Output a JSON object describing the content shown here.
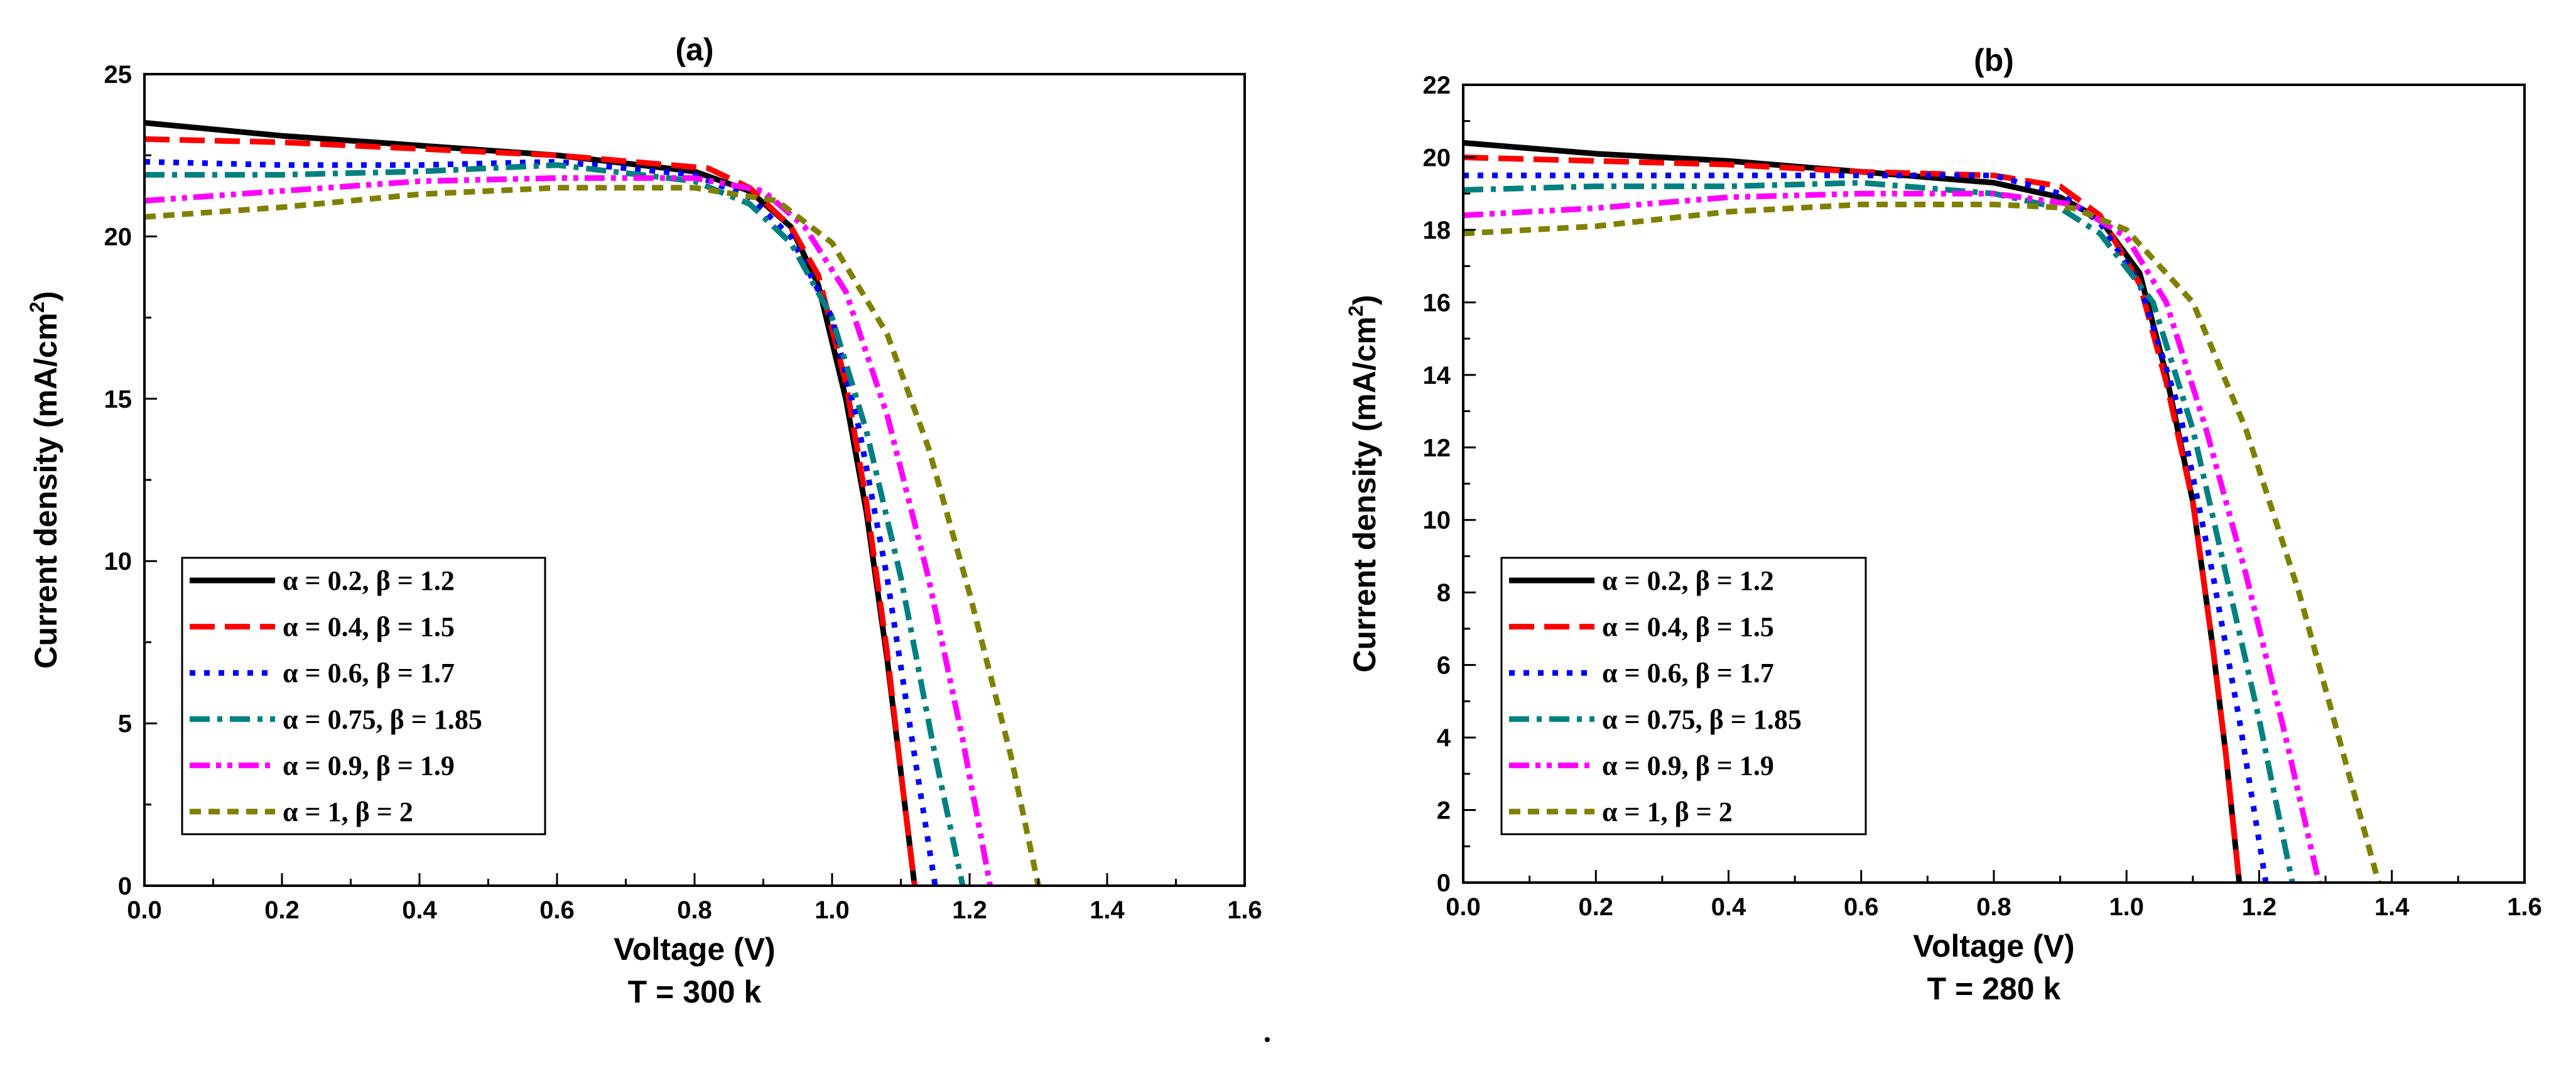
{
  "chart_data": [
    {
      "type": "line",
      "title": "(a)",
      "xlabel": "Voltage (V)",
      "ylabel": "Current density (mA/cm2)",
      "caption": "T = 300 k",
      "xlim": [
        0,
        1.6
      ],
      "ylim": [
        0,
        25
      ],
      "xticks": [
        0.0,
        0.2,
        0.4,
        0.6,
        0.8,
        1.0,
        1.2,
        1.4,
        1.6
      ],
      "xtick_labels": [
        "0.0",
        "0.2",
        "0.4",
        "0.6",
        "0.8",
        "1.0",
        "1.2",
        "1.4",
        "1.6"
      ],
      "yticks": [
        0,
        5,
        10,
        15,
        20,
        25
      ],
      "ytick_labels": [
        "0",
        "5",
        "10",
        "15",
        "20",
        "25"
      ],
      "legend_position": "lower-left",
      "series": [
        {
          "name": "α = 0.2, β = 1.2",
          "color": "#000000",
          "style": "solid",
          "x": [
            0,
            0.2,
            0.4,
            0.6,
            0.8,
            0.88,
            0.94,
            0.98,
            1.02,
            1.05,
            1.08,
            1.1,
            1.12
          ],
          "y": [
            23.5,
            23.1,
            22.8,
            22.5,
            22.0,
            21.4,
            20.3,
            18.5,
            15.0,
            11.5,
            7.0,
            3.5,
            0
          ]
        },
        {
          "name": "α = 0.4, β = 1.5",
          "color": "#ff0000",
          "style": "dash",
          "x": [
            0,
            0.2,
            0.4,
            0.6,
            0.82,
            0.88,
            0.94,
            0.98,
            1.02,
            1.05,
            1.08,
            1.1,
            1.12
          ],
          "y": [
            23.0,
            22.9,
            22.7,
            22.5,
            22.1,
            21.5,
            20.3,
            18.8,
            15.5,
            11.8,
            7.2,
            3.5,
            0
          ]
        },
        {
          "name": "α = 0.6, β = 1.7",
          "color": "#0000ff",
          "style": "dot",
          "x": [
            0,
            0.2,
            0.4,
            0.6,
            0.8,
            0.88,
            0.94,
            1.0,
            1.04,
            1.08,
            1.12,
            1.15
          ],
          "y": [
            22.3,
            22.2,
            22.2,
            22.3,
            21.9,
            21.2,
            20.0,
            17.5,
            14.0,
            9.5,
            4.0,
            0
          ]
        },
        {
          "name": "α = 0.75, β = 1.85",
          "color": "#008080",
          "style": "dashdot",
          "x": [
            0,
            0.2,
            0.4,
            0.6,
            0.8,
            0.88,
            0.94,
            1.0,
            1.05,
            1.1,
            1.15,
            1.19
          ],
          "y": [
            21.9,
            21.9,
            22.0,
            22.2,
            21.7,
            21.0,
            19.8,
            17.5,
            14.0,
            9.5,
            4.0,
            0
          ]
        },
        {
          "name": "α = 0.9, β = 1.9",
          "color": "#ff00ff",
          "style": "dashdotdot",
          "x": [
            0,
            0.2,
            0.4,
            0.6,
            0.8,
            0.9,
            0.96,
            1.02,
            1.08,
            1.14,
            1.19,
            1.23
          ],
          "y": [
            21.1,
            21.4,
            21.7,
            21.8,
            21.8,
            21.4,
            20.3,
            18.3,
            14.5,
            9.5,
            4.5,
            0
          ]
        },
        {
          "name": "α = 1, β = 2",
          "color": "#808000",
          "style": "shortdash",
          "x": [
            0,
            0.2,
            0.4,
            0.6,
            0.8,
            0.92,
            1.0,
            1.08,
            1.14,
            1.2,
            1.26,
            1.3
          ],
          "y": [
            20.6,
            20.9,
            21.3,
            21.5,
            21.5,
            21.1,
            19.8,
            17.0,
            13.5,
            9.0,
            4.0,
            0
          ]
        }
      ]
    },
    {
      "type": "line",
      "title": "(b)",
      "xlabel": "Voltage (V)",
      "ylabel": "Current density (mA/cm2)",
      "caption": "T = 280 k",
      "xlim": [
        0,
        1.6
      ],
      "ylim": [
        0,
        22
      ],
      "xticks": [
        0.0,
        0.2,
        0.4,
        0.6,
        0.8,
        1.0,
        1.2,
        1.4,
        1.6
      ],
      "xtick_labels": [
        "0.0",
        "0.2",
        "0.4",
        "0.6",
        "0.8",
        "1.0",
        "1.2",
        "1.4",
        "1.6"
      ],
      "yticks": [
        0,
        2,
        4,
        6,
        8,
        10,
        12,
        14,
        16,
        18,
        20,
        22
      ],
      "ytick_labels": [
        "0",
        "2",
        "4",
        "6",
        "8",
        "10",
        "12",
        "14",
        "16",
        "18",
        "20",
        "22"
      ],
      "legend_position": "lower-left",
      "series": [
        {
          "name": "α = 0.2, β = 1.2",
          "color": "#000000",
          "style": "solid",
          "x": [
            0,
            0.2,
            0.4,
            0.6,
            0.8,
            0.9,
            0.96,
            1.02,
            1.06,
            1.1,
            1.13,
            1.15,
            1.17
          ],
          "y": [
            20.4,
            20.1,
            19.9,
            19.6,
            19.3,
            18.9,
            18.3,
            16.8,
            14.0,
            10.5,
            6.5,
            3.5,
            0
          ]
        },
        {
          "name": "α = 0.4, β = 1.5",
          "color": "#ff0000",
          "style": "dash",
          "x": [
            0,
            0.2,
            0.4,
            0.6,
            0.8,
            0.9,
            0.96,
            1.02,
            1.06,
            1.1,
            1.13,
            1.15,
            1.17
          ],
          "y": [
            20.0,
            19.9,
            19.8,
            19.6,
            19.5,
            19.2,
            18.4,
            16.5,
            13.8,
            10.5,
            6.5,
            3.5,
            0
          ]
        },
        {
          "name": "α = 0.6, β = 1.7",
          "color": "#0000ff",
          "style": "dot",
          "x": [
            0,
            0.2,
            0.4,
            0.6,
            0.8,
            0.9,
            0.96,
            1.02,
            1.08,
            1.13,
            1.17,
            1.21
          ],
          "y": [
            19.5,
            19.5,
            19.5,
            19.5,
            19.5,
            19.0,
            18.2,
            16.5,
            13.0,
            8.5,
            4.5,
            0
          ]
        },
        {
          "name": "α = 0.75, β = 1.85",
          "color": "#008080",
          "style": "dashdot",
          "x": [
            0,
            0.2,
            0.4,
            0.6,
            0.8,
            0.9,
            0.96,
            1.04,
            1.1,
            1.15,
            1.2,
            1.25
          ],
          "y": [
            19.1,
            19.2,
            19.2,
            19.3,
            19.0,
            18.6,
            17.9,
            16.0,
            12.5,
            8.5,
            4.5,
            0
          ]
        },
        {
          "name": "α = 0.9, β = 1.9",
          "color": "#ff00ff",
          "style": "dashdotdot",
          "x": [
            0,
            0.2,
            0.4,
            0.6,
            0.8,
            0.92,
            1.0,
            1.06,
            1.12,
            1.18,
            1.24,
            1.29
          ],
          "y": [
            18.4,
            18.6,
            18.9,
            19.0,
            19.0,
            18.7,
            17.8,
            16.0,
            12.5,
            8.5,
            4.0,
            0
          ]
        },
        {
          "name": "α = 1, β = 2",
          "color": "#808000",
          "style": "shortdash",
          "x": [
            0,
            0.2,
            0.4,
            0.6,
            0.8,
            0.92,
            1.0,
            1.1,
            1.18,
            1.26,
            1.32,
            1.38
          ],
          "y": [
            17.9,
            18.1,
            18.5,
            18.7,
            18.7,
            18.6,
            18.0,
            16.0,
            12.5,
            8.0,
            4.0,
            0
          ]
        }
      ]
    }
  ]
}
